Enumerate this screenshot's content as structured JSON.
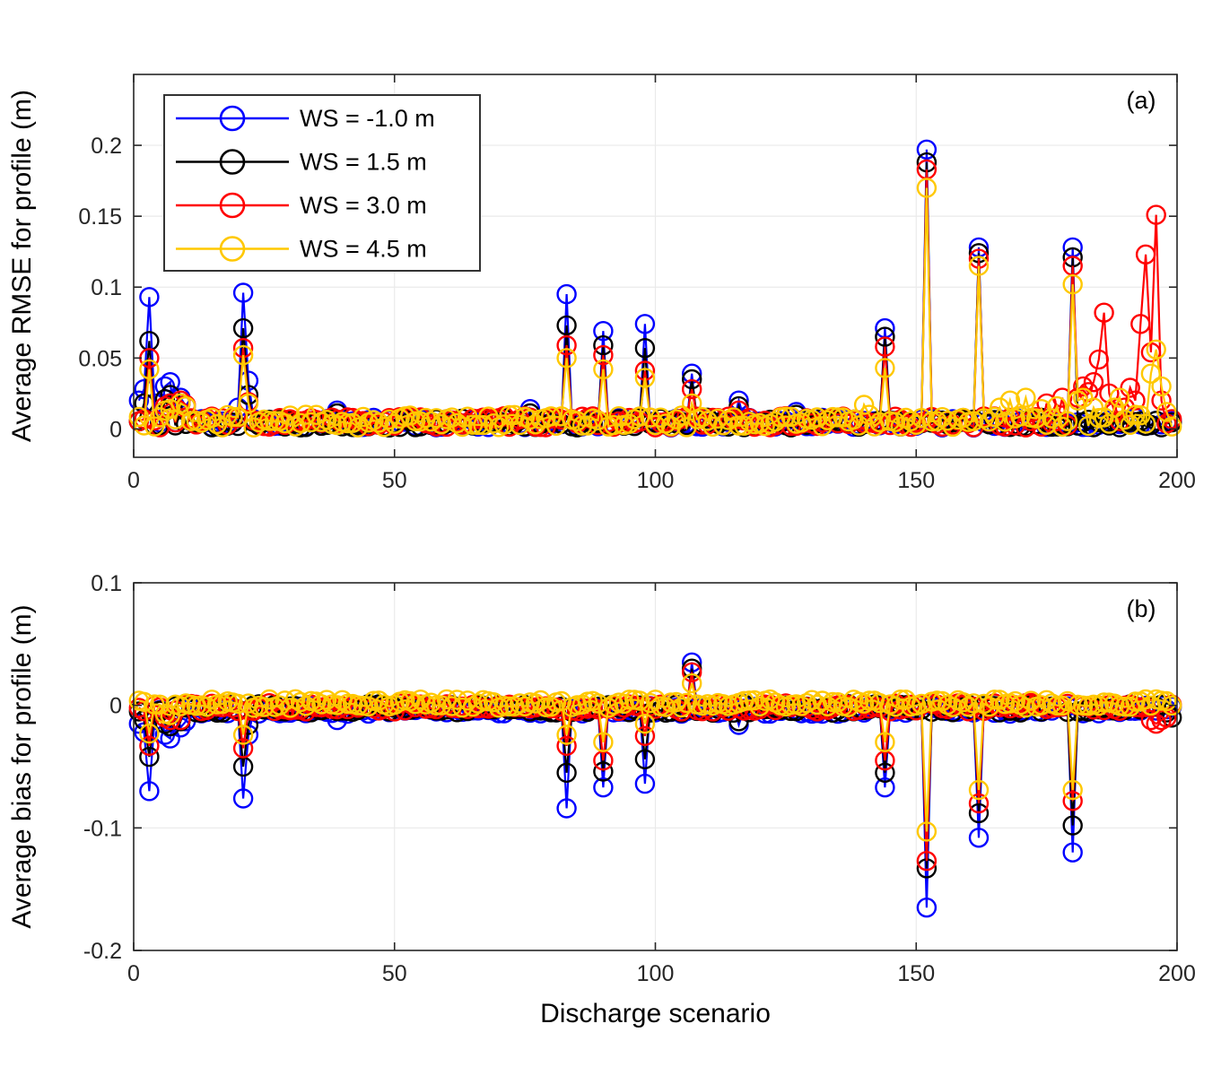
{
  "figure": {
    "background": "#ffffff",
    "axis_color": "#262626",
    "grid_color": "#eaeaea",
    "tick_label_color": "#262626",
    "label_color": "#000000",
    "legend_border_color": "#333333",
    "legend_background": "#ffffff"
  },
  "legend": {
    "entries": [
      {
        "label": "WS = -1.0 m",
        "color": "#0000ff"
      },
      {
        "label": "WS = 1.5 m",
        "color": "#000000"
      },
      {
        "label": "WS = 3.0 m",
        "color": "#ff0000"
      },
      {
        "label": "WS = 4.5 m",
        "color": "#ffc800"
      }
    ]
  },
  "xlabel_shared": "Discharge scenario",
  "chart_data": [
    {
      "type": "line",
      "panel_label": "(a)",
      "ylabel": "Average RMSE for profile (m)",
      "xlabel": "",
      "xlim": [
        0,
        200
      ],
      "ylim": [
        -0.02,
        0.25
      ],
      "x_range": [
        1,
        199
      ],
      "xticks": [
        0,
        50,
        100,
        150,
        200
      ],
      "xtick_labels": [
        "0",
        "50",
        "100",
        "150",
        "200"
      ],
      "yticks": [
        0,
        0.05,
        0.1,
        0.15,
        0.2
      ],
      "ytick_labels": [
        "0",
        "0.05",
        "0.1",
        "0.15",
        "0.2"
      ],
      "grid": true,
      "marker": "circle",
      "legend_visible": true,
      "series": [
        {
          "name": "WS = -1.0 m",
          "color": "#0000ff",
          "seed": 11,
          "baseline": {
            "min": 0.001,
            "max": 0.008
          },
          "spikes": {
            "1": 0.02,
            "2": 0.028,
            "3": 0.093,
            "4": 0.018,
            "6": 0.03,
            "7": 0.033,
            "9": 0.022,
            "10": 0.016,
            "20": 0.015,
            "21": 0.096,
            "22": 0.034,
            "39": 0.013,
            "76": 0.014,
            "83": 0.095,
            "90": 0.069,
            "98": 0.074,
            "107": 0.039,
            "116": 0.02,
            "127": 0.012,
            "144": 0.071,
            "152": 0.197,
            "162": 0.128,
            "180": 0.128
          }
        },
        {
          "name": "WS = 1.5 m",
          "color": "#000000",
          "seed": 22,
          "baseline": {
            "min": 0.001,
            "max": 0.008
          },
          "spikes": {
            "2": 0.018,
            "3": 0.062,
            "6": 0.021,
            "7": 0.024,
            "9": 0.018,
            "21": 0.071,
            "22": 0.024,
            "39": 0.011,
            "76": 0.011,
            "83": 0.073,
            "90": 0.059,
            "98": 0.057,
            "107": 0.035,
            "116": 0.016,
            "127": 0.01,
            "144": 0.065,
            "152": 0.188,
            "162": 0.124,
            "180": 0.121
          }
        },
        {
          "name": "WS = 3.0 m",
          "color": "#ff0000",
          "seed": 33,
          "baseline": {
            "min": 0.001,
            "max": 0.009
          },
          "spikes": {
            "3": 0.05,
            "6": 0.016,
            "7": 0.018,
            "9": 0.02,
            "10": 0.017,
            "21": 0.057,
            "22": 0.019,
            "83": 0.059,
            "90": 0.052,
            "98": 0.041,
            "107": 0.028,
            "116": 0.013,
            "144": 0.058,
            "152": 0.183,
            "162": 0.12,
            "175": 0.018,
            "178": 0.022,
            "180": 0.115,
            "181": 0.022,
            "182": 0.03,
            "183": 0.026,
            "184": 0.033,
            "185": 0.049,
            "186": 0.082,
            "187": 0.025,
            "188": 0.012,
            "190": 0.015,
            "191": 0.029,
            "192": 0.02,
            "193": 0.074,
            "194": 0.123,
            "195": 0.054,
            "196": 0.151,
            "197": 0.02
          }
        },
        {
          "name": "WS = 4.5 m",
          "color": "#ffc800",
          "seed": 44,
          "baseline": {
            "min": 0.001,
            "max": 0.01
          },
          "spikes": {
            "3": 0.042,
            "6": 0.013,
            "7": 0.014,
            "9": 0.018,
            "10": 0.016,
            "21": 0.052,
            "22": 0.018,
            "83": 0.05,
            "90": 0.042,
            "98": 0.036,
            "107": 0.018,
            "140": 0.017,
            "144": 0.043,
            "152": 0.17,
            "162": 0.115,
            "166": 0.015,
            "168": 0.02,
            "171": 0.022,
            "174": 0.014,
            "177": 0.016,
            "180": 0.102,
            "181": 0.02,
            "182": 0.022,
            "184": 0.015,
            "188": 0.015,
            "189": 0.022,
            "192": 0.01,
            "195": 0.039,
            "196": 0.056,
            "197": 0.03,
            "198": 0.012
          }
        }
      ]
    },
    {
      "type": "line",
      "panel_label": "(b)",
      "ylabel": "Average bias for profile (m)",
      "xlabel": "Discharge scenario",
      "xlim": [
        0,
        200
      ],
      "ylim": [
        -0.2,
        0.1
      ],
      "x_range": [
        1,
        199
      ],
      "xticks": [
        0,
        50,
        100,
        150,
        200
      ],
      "xtick_labels": [
        "0",
        "50",
        "100",
        "150",
        "200"
      ],
      "yticks": [
        -0.2,
        -0.1,
        0,
        0.1
      ],
      "ytick_labels": [
        "-0.2",
        "-0.1",
        "0",
        "0.1"
      ],
      "grid": true,
      "marker": "circle",
      "legend_visible": false,
      "series": [
        {
          "name": "WS = -1.0 m",
          "color": "#0000ff",
          "seed": 55,
          "baseline": {
            "min": -0.007,
            "max": 0.0
          },
          "spikes": {
            "1": -0.015,
            "2": -0.022,
            "3": -0.07,
            "4": -0.012,
            "6": -0.024,
            "7": -0.027,
            "9": -0.018,
            "10": -0.013,
            "21": -0.076,
            "22": -0.024,
            "39": -0.012,
            "83": -0.084,
            "90": -0.067,
            "98": -0.064,
            "107": 0.035,
            "116": -0.016,
            "144": -0.067,
            "152": -0.165,
            "162": -0.108,
            "180": -0.12
          }
        },
        {
          "name": "WS = 1.5 m",
          "color": "#000000",
          "seed": 66,
          "baseline": {
            "min": -0.006,
            "max": 0.001
          },
          "spikes": {
            "2": -0.012,
            "3": -0.042,
            "6": -0.015,
            "7": -0.017,
            "9": -0.013,
            "21": -0.05,
            "22": -0.016,
            "83": -0.055,
            "90": -0.054,
            "98": -0.044,
            "107": 0.03,
            "116": -0.013,
            "144": -0.055,
            "152": -0.133,
            "162": -0.088,
            "180": -0.098,
            "199": -0.01
          }
        },
        {
          "name": "WS = 3.0 m",
          "color": "#ff0000",
          "seed": 77,
          "baseline": {
            "min": -0.005,
            "max": 0.002
          },
          "spikes": {
            "3": -0.033,
            "6": -0.01,
            "7": -0.012,
            "9": -0.012,
            "21": -0.035,
            "83": -0.033,
            "90": -0.045,
            "98": -0.025,
            "107": 0.027,
            "144": -0.045,
            "152": -0.127,
            "162": -0.08,
            "180": -0.078,
            "195": -0.012,
            "196": -0.015,
            "197": -0.012,
            "198": -0.01
          }
        },
        {
          "name": "WS = 4.5 m",
          "color": "#ffc800",
          "seed": 88,
          "baseline": {
            "min": -0.002,
            "max": 0.005
          },
          "spikes": {
            "3": -0.023,
            "6": -0.007,
            "7": -0.008,
            "21": -0.024,
            "83": -0.024,
            "90": -0.03,
            "98": -0.015,
            "107": 0.018,
            "144": -0.03,
            "152": -0.103,
            "162": -0.069,
            "180": -0.069
          }
        }
      ]
    }
  ]
}
